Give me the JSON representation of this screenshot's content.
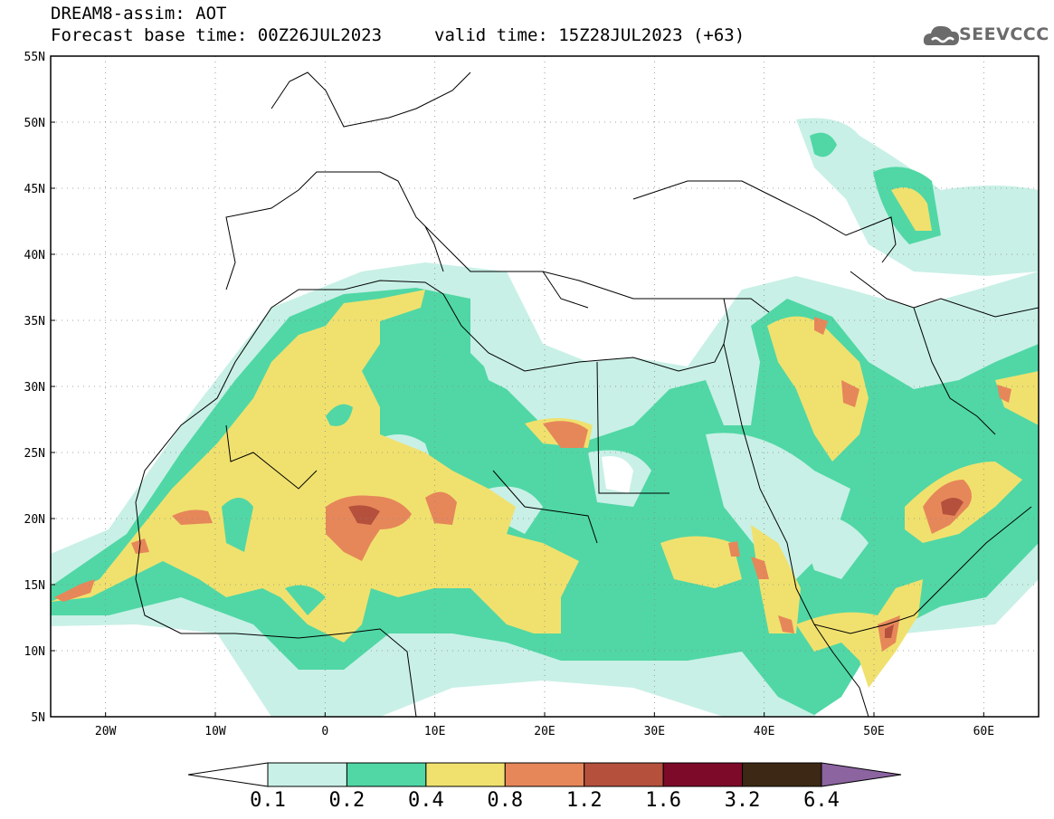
{
  "header": {
    "title": "DREAM8-assim: AOT",
    "base_time": "Forecast base time: 00Z26JUL2023",
    "valid_time": "valid time: 15Z28JUL2023 (+63)",
    "logo_text": "SEEVCCC"
  },
  "map": {
    "lon_range": [
      -25,
      65
    ],
    "lat_range": [
      5,
      55
    ],
    "lat_labels": [
      "55N",
      "50N",
      "45N",
      "40N",
      "35N",
      "30N",
      "25N",
      "20N",
      "15N",
      "10N",
      "5N"
    ],
    "lat_values": [
      55,
      50,
      45,
      40,
      35,
      30,
      25,
      20,
      15,
      10,
      5
    ],
    "lon_labels": [
      "20W",
      "10W",
      "0",
      "10E",
      "20E",
      "30E",
      "40E",
      "50E",
      "60E"
    ],
    "lon_values": [
      -20,
      -10,
      0,
      10,
      20,
      30,
      40,
      50,
      60
    ],
    "grid": "dotted"
  },
  "colorbar": {
    "levels": [
      "0.1",
      "0.2",
      "0.4",
      "0.8",
      "1.2",
      "1.6",
      "3.2",
      "6.4"
    ],
    "colors": [
      "#c8f0e6",
      "#50d7a5",
      "#f0e16e",
      "#e6875a",
      "#b4503c",
      "#7d0a28",
      "#3c2814",
      "#8c64a0"
    ]
  }
}
